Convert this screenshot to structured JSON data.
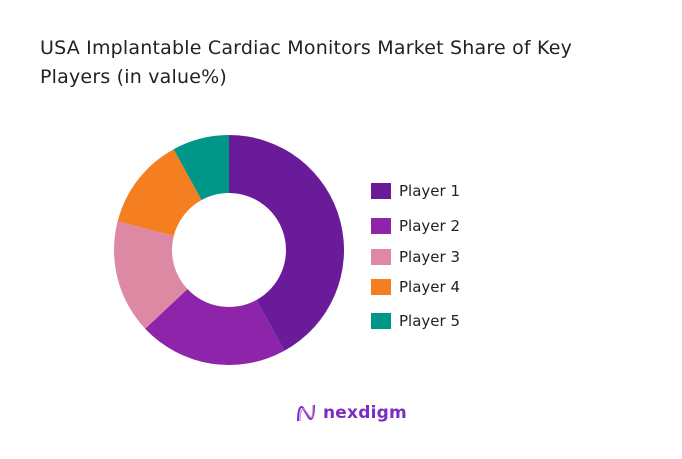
{
  "chart_data": {
    "type": "pie",
    "donut": true,
    "title": "USA Implantable Cardiac Monitors Market Share of Key Players (in value%)",
    "categories": [
      "Player 1",
      "Player 2",
      "Player 3",
      "Player 4",
      "Player 5"
    ],
    "values": [
      42,
      21,
      16,
      13,
      8
    ],
    "colors": [
      "#6a1b9a",
      "#8e24aa",
      "#de89a3",
      "#f47e20",
      "#009688"
    ],
    "legend_position": "right"
  },
  "brand": {
    "name": "nexdigm",
    "color": "#7b2cc1"
  }
}
